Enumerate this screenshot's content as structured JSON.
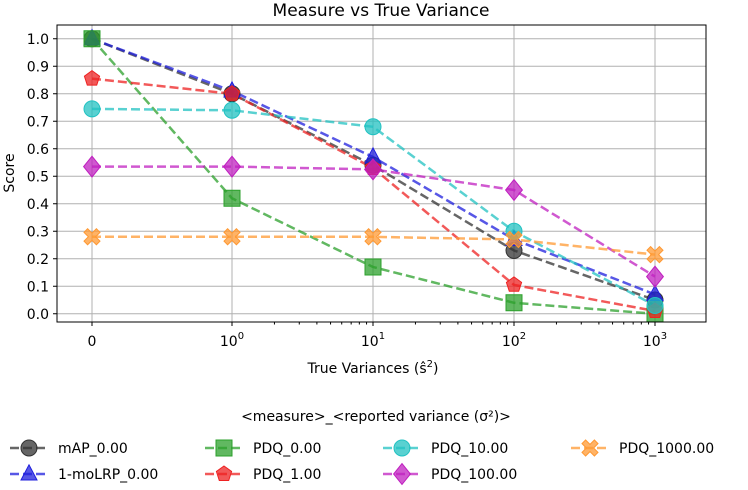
{
  "chart_data": {
    "type": "line",
    "title": "Measure vs True Variance",
    "xlabel": "True Variances (ŝ²)",
    "ylabel": "Score",
    "x": [
      "0",
      "10⁰",
      "10¹",
      "10²",
      "10³"
    ],
    "x_tick_labels": [
      {
        "base": "0",
        "exp": ""
      },
      {
        "base": "10",
        "exp": "0"
      },
      {
        "base": "10",
        "exp": "1"
      },
      {
        "base": "10",
        "exp": "2"
      },
      {
        "base": "10",
        "exp": "3"
      }
    ],
    "ylim": [
      -0.03,
      1.05
    ],
    "yticks": [
      "0.0",
      "0.1",
      "0.2",
      "0.3",
      "0.4",
      "0.5",
      "0.6",
      "0.7",
      "0.8",
      "0.9",
      "1.0"
    ],
    "grid": true,
    "legend_title": "<measure>_<reported variance (σ²)>",
    "legend_position": "below",
    "series": [
      {
        "name": "mAP_0.00",
        "color": "#333333",
        "marker": "circle",
        "values": [
          1.0,
          0.8,
          0.54,
          0.23,
          0.05
        ]
      },
      {
        "name": "1-moLRP_0.00",
        "color": "#1f1fdd",
        "marker": "triangle",
        "values": [
          1.0,
          0.81,
          0.57,
          0.27,
          0.07
        ]
      },
      {
        "name": "PDQ_0.00",
        "color": "#2ca02c",
        "marker": "square",
        "values": [
          1.0,
          0.42,
          0.17,
          0.04,
          0.0
        ]
      },
      {
        "name": "PDQ_1.00",
        "color": "#ee2222",
        "marker": "pentagon",
        "values": [
          0.855,
          0.8,
          0.53,
          0.105,
          0.01
        ]
      },
      {
        "name": "PDQ_10.00",
        "color": "#22c2c2",
        "marker": "octagon",
        "values": [
          0.745,
          0.74,
          0.68,
          0.3,
          0.03
        ]
      },
      {
        "name": "PDQ_100.00",
        "color": "#c020c0",
        "marker": "diamond",
        "values": [
          0.535,
          0.535,
          0.525,
          0.45,
          0.135
        ]
      },
      {
        "name": "PDQ_1000.00",
        "color": "#ff9933",
        "marker": "x",
        "values": [
          0.28,
          0.28,
          0.28,
          0.27,
          0.215
        ]
      }
    ]
  }
}
